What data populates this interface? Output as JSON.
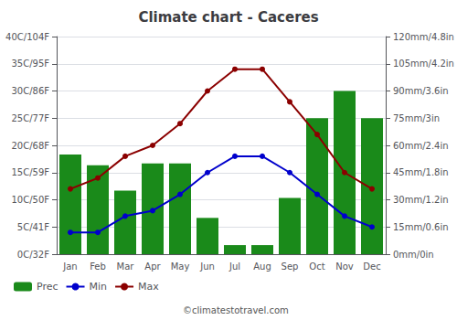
{
  "chart_data": {
    "type": "bar",
    "title": "Climate chart - Caceres",
    "categories": [
      "Jan",
      "Feb",
      "Mar",
      "Apr",
      "May",
      "Jun",
      "Jul",
      "Aug",
      "Sep",
      "Oct",
      "Nov",
      "Dec"
    ],
    "series": [
      {
        "name": "Prec",
        "type": "bar",
        "axis": "y2",
        "color": "#1a8a1a",
        "values": [
          55,
          49,
          35,
          50,
          50,
          20,
          5,
          5,
          31,
          75,
          90,
          75
        ]
      },
      {
        "name": "Min",
        "type": "line",
        "marker": "circle",
        "color": "#0000cc",
        "values": [
          4,
          4,
          7,
          8,
          11,
          15,
          18,
          18,
          15,
          11,
          7,
          5
        ]
      },
      {
        "name": "Max",
        "type": "line",
        "marker": "circle",
        "color": "#8b0000",
        "values": [
          12,
          14,
          18,
          20,
          24,
          30,
          34,
          34,
          28,
          22,
          15,
          12
        ]
      }
    ],
    "ylim": [
      0,
      40
    ],
    "yticks": [
      {
        "value": 0,
        "label": "0C/32F"
      },
      {
        "value": 5,
        "label": "5C/41F"
      },
      {
        "value": 10,
        "label": "10C/50F"
      },
      {
        "value": 15,
        "label": "15C/59F"
      },
      {
        "value": 20,
        "label": "20C/68F"
      },
      {
        "value": 25,
        "label": "25C/77F"
      },
      {
        "value": 30,
        "label": "30C/86F"
      },
      {
        "value": 35,
        "label": "35C/95F"
      },
      {
        "value": 40,
        "label": "40C/104F"
      }
    ],
    "y2lim": [
      0,
      120
    ],
    "y2ticks": [
      {
        "value": 0,
        "label": "0mm/0in"
      },
      {
        "value": 15,
        "label": "15mm/0.6in"
      },
      {
        "value": 30,
        "label": "30mm/1.2in"
      },
      {
        "value": 45,
        "label": "45mm/1.8in"
      },
      {
        "value": 60,
        "label": "60mm/2.4in"
      },
      {
        "value": 75,
        "label": "75mm/3in"
      },
      {
        "value": 90,
        "label": "90mm/3.6in"
      },
      {
        "value": 105,
        "label": "105mm/4.2in"
      },
      {
        "value": 120,
        "label": "120mm/4.8in"
      }
    ],
    "grid": true,
    "legend": "bottom",
    "annotations": [
      "©climatestotravel.com"
    ]
  }
}
